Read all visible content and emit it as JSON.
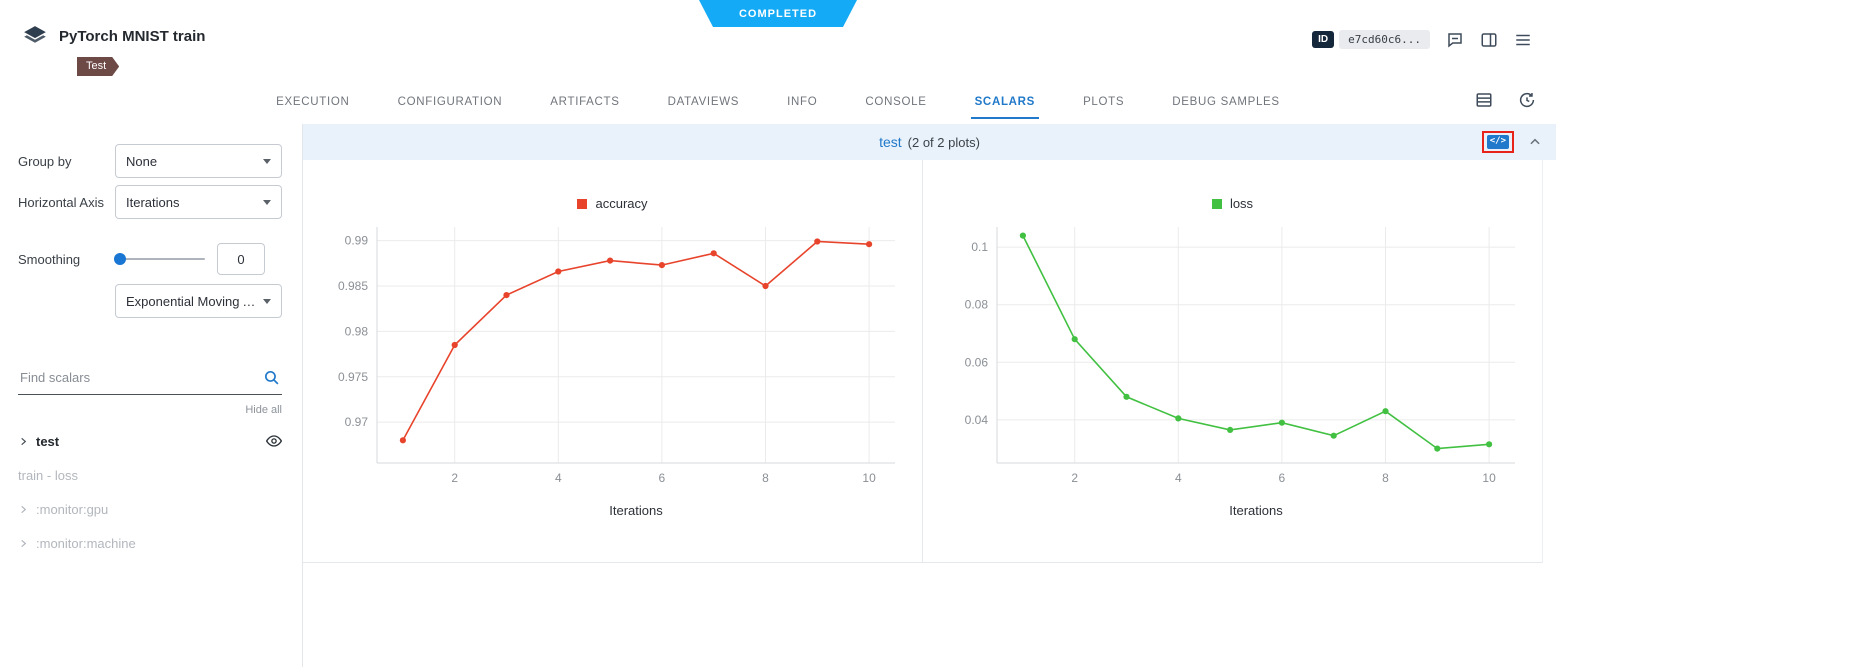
{
  "status": {
    "label": "COMPLETED",
    "color": "#14aaf5"
  },
  "colors": {
    "accent": "#2079ca",
    "tag": "#6e4a47",
    "status": "#14aaf5"
  },
  "header": {
    "title": "PyTorch MNIST train",
    "tag": "Test",
    "id_label": "ID",
    "id_value": "e7cd60c6...",
    "icons": [
      "comment-icon",
      "layout-columns-icon",
      "menu-icon"
    ]
  },
  "tabs": {
    "items": [
      {
        "label": "EXECUTION",
        "active": false
      },
      {
        "label": "CONFIGURATION",
        "active": false
      },
      {
        "label": "ARTIFACTS",
        "active": false
      },
      {
        "label": "DATAVIEWS",
        "active": false
      },
      {
        "label": "INFO",
        "active": false
      },
      {
        "label": "CONSOLE",
        "active": false
      },
      {
        "label": "SCALARS",
        "active": true
      },
      {
        "label": "PLOTS",
        "active": false
      },
      {
        "label": "DEBUG SAMPLES",
        "active": false
      }
    ],
    "icons": [
      "table-view-icon",
      "auto-refresh-icon"
    ]
  },
  "sidebar": {
    "group_by": {
      "label": "Group by",
      "value": "None"
    },
    "horizontal_axis": {
      "label": "Horizontal Axis",
      "value": "Iterations"
    },
    "smoothing": {
      "label": "Smoothing",
      "value": "0",
      "type": "Exponential Moving Av..."
    },
    "search": {
      "placeholder": "Find scalars",
      "icon": "search-icon"
    },
    "hide_all": "Hide all",
    "metrics": [
      {
        "label": "test",
        "bold": true,
        "chevron": true,
        "eye": true
      },
      {
        "label": "train - loss",
        "muted": true
      },
      {
        "label": ":monitor:gpu",
        "muted": true,
        "chevron": true
      },
      {
        "label": ":monitor:machine",
        "muted": true,
        "chevron": true
      }
    ]
  },
  "main": {
    "group_title": "test",
    "group_count": "(2 of 2 plots)",
    "embed_code_label": "</>"
  },
  "chart_data": [
    {
      "type": "line",
      "title": "accuracy",
      "xlabel": "Iterations",
      "xlim": [
        0.5,
        10.5
      ],
      "ylim": [
        0.9655,
        0.9915
      ],
      "xticks": [
        2,
        4,
        6,
        8,
        10
      ],
      "yticks": [
        0.97,
        0.975,
        0.98,
        0.985,
        0.99
      ],
      "grid": true,
      "legend_position": "top-center",
      "series": [
        {
          "name": "accuracy",
          "color": "#e8442c",
          "x": [
            1,
            2,
            3,
            4,
            5,
            6,
            7,
            8,
            9,
            10
          ],
          "y": [
            0.968,
            0.9785,
            0.984,
            0.9866,
            0.9878,
            0.9873,
            0.9886,
            0.985,
            0.9899,
            0.9896
          ]
        }
      ]
    },
    {
      "type": "line",
      "title": "loss",
      "xlabel": "Iterations",
      "xlim": [
        0.5,
        10.5
      ],
      "ylim": [
        0.025,
        0.107
      ],
      "xticks": [
        2,
        4,
        6,
        8,
        10
      ],
      "yticks": [
        0.04,
        0.06,
        0.08,
        0.1
      ],
      "grid": true,
      "legend_position": "top-center",
      "series": [
        {
          "name": "loss",
          "color": "#41c041",
          "x": [
            1,
            2,
            3,
            4,
            5,
            6,
            7,
            8,
            9,
            10
          ],
          "y": [
            0.104,
            0.068,
            0.048,
            0.0405,
            0.0365,
            0.039,
            0.0345,
            0.043,
            0.03,
            0.0315
          ]
        }
      ]
    }
  ]
}
